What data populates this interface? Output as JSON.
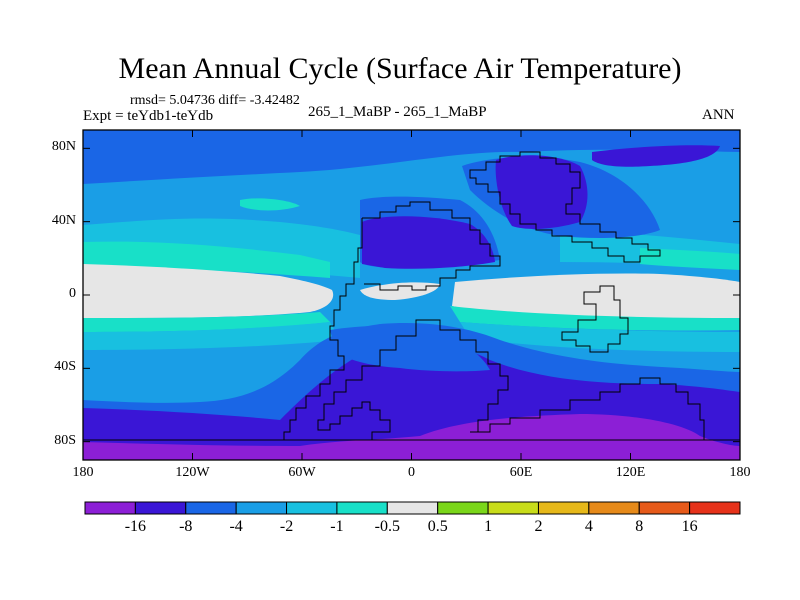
{
  "title": "Mean Annual Cycle (Surface Air Temperature)",
  "stats_text": "rmsd= 5.04736 diff= -3.42482",
  "expt_text": "Expt = teYdb1-teYdb",
  "center_label": "265_1_MaBP - 265_1_MaBP",
  "season": "ANN",
  "lat_ticks": [
    {
      "label": "80N",
      "lat": 80
    },
    {
      "label": "40N",
      "lat": 40
    },
    {
      "label": "0",
      "lat": 0
    },
    {
      "label": "40S",
      "lat": -40
    },
    {
      "label": "80S",
      "lat": -80
    }
  ],
  "lon_ticks": [
    {
      "label": "180",
      "lon": -180
    },
    {
      "label": "120W",
      "lon": -120
    },
    {
      "label": "60W",
      "lon": -60
    },
    {
      "label": "0",
      "lon": 0
    },
    {
      "label": "60E",
      "lon": 60
    },
    {
      "label": "120E",
      "lon": 120
    },
    {
      "label": "180",
      "lon": 180
    }
  ],
  "colorbar": {
    "colors": [
      "#8c1fd6",
      "#3a16d6",
      "#1a66e6",
      "#1a9ee6",
      "#18c0e0",
      "#18e0c8",
      "#e6e6e6",
      "#7ad61a",
      "#c8dc1a",
      "#e6b81a",
      "#e68a1a",
      "#e65a1a",
      "#e6321a"
    ],
    "labels": [
      "-16",
      "-8",
      "-4",
      "-2",
      "-1",
      "-0.5",
      "0.5",
      "1",
      "2",
      "4",
      "8",
      "16"
    ]
  }
}
